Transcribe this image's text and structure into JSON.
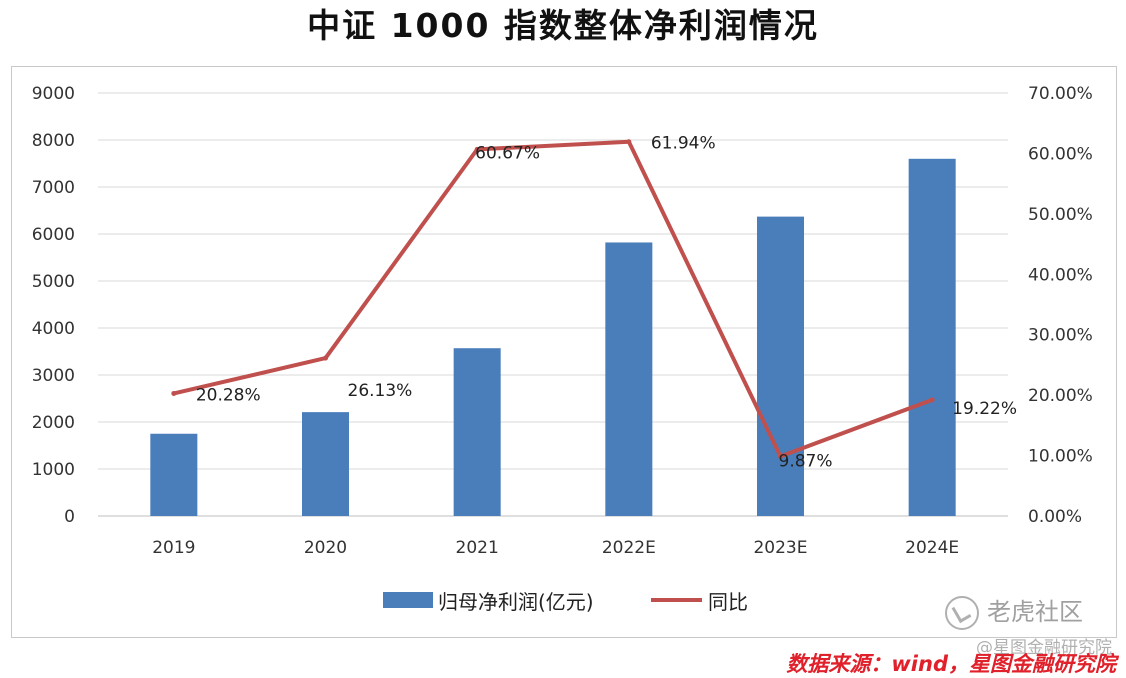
{
  "title": "中证 1000 指数整体净利润情况",
  "chart_data": {
    "type": "bar",
    "categories": [
      "2019",
      "2020",
      "2021",
      "2022E",
      "2023E",
      "2024E"
    ],
    "series": [
      {
        "name": "归母净利润(亿元)",
        "type": "bar",
        "axis": "left",
        "color": "#4a7ebb",
        "values": [
          1750,
          2210,
          3570,
          5820,
          6370,
          7600
        ]
      },
      {
        "name": "同比",
        "type": "line",
        "axis": "right",
        "color": "#c0504d",
        "values": [
          20.28,
          26.13,
          60.67,
          61.94,
          9.87,
          19.22
        ],
        "labels": [
          "20.28%",
          "26.13%",
          "60.67%",
          "61.94%",
          "9.87%",
          "19.22%"
        ]
      }
    ],
    "y_left": {
      "range": [
        0,
        9000
      ],
      "ticks": [
        "0",
        "1000",
        "2000",
        "3000",
        "4000",
        "5000",
        "6000",
        "7000",
        "8000",
        "9000"
      ]
    },
    "y_right": {
      "range": [
        0,
        70
      ],
      "ticks": [
        "0.00%",
        "10.00%",
        "20.00%",
        "30.00%",
        "40.00%",
        "50.00%",
        "60.00%",
        "70.00%"
      ]
    },
    "grid": true,
    "legend_position": "bottom"
  },
  "source": "数据来源：wind，星图金融研究院",
  "watermark": {
    "main": "老虎社区",
    "sub": "@星图金融研究院"
  }
}
